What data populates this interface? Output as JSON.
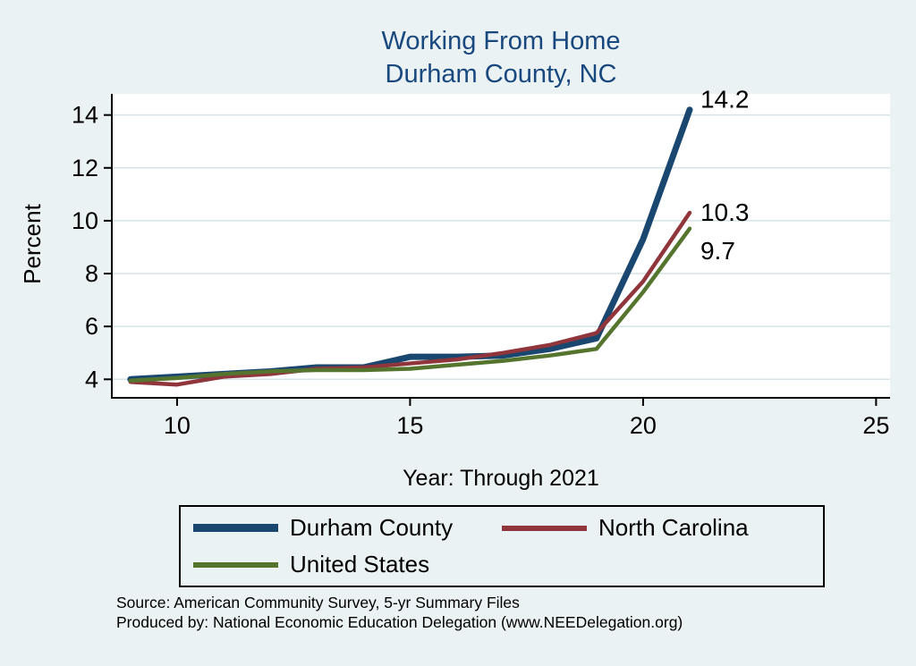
{
  "page": {
    "background": "#eaf2f3",
    "title_line1": "Working From Home",
    "title_line2": "Durham County, NC",
    "title_color": "#19487f"
  },
  "axis": {
    "x_label": "Year: Through 2021",
    "y_label": "Percent"
  },
  "chart_data": {
    "type": "line",
    "title": "Working From Home — Durham County, NC",
    "xlabel": "Year: Through 2021",
    "ylabel": "Percent",
    "x": [
      9,
      10,
      11,
      12,
      13,
      14,
      15,
      16,
      17,
      18,
      19,
      20,
      21
    ],
    "x_ticks": [
      10,
      15,
      20,
      25
    ],
    "y_ticks": [
      4,
      6,
      8,
      10,
      12,
      14
    ],
    "xlim": [
      8.6,
      25.3
    ],
    "ylim": [
      3.3,
      14.8
    ],
    "grid": true,
    "grid_color": "#d6e4e7",
    "plot_background": "#ffffff",
    "legend_position": "bottom",
    "series": [
      {
        "name": "Durham County",
        "color": "#1a476f",
        "width": 7,
        "end_label": "14.2",
        "label_dy": -2,
        "values": [
          4.0,
          4.1,
          4.2,
          4.3,
          4.45,
          4.45,
          4.85,
          4.85,
          4.9,
          5.15,
          5.55,
          9.3,
          14.2
        ]
      },
      {
        "name": "North Carolina",
        "color": "#90353b",
        "width": 4.5,
        "end_label": "10.3",
        "label_dy": 9,
        "values": [
          3.9,
          3.8,
          4.1,
          4.2,
          4.4,
          4.45,
          4.6,
          4.75,
          5.0,
          5.3,
          5.75,
          7.7,
          10.3
        ]
      },
      {
        "name": "United States",
        "color": "#55752f",
        "width": 4.5,
        "end_label": "9.7",
        "label_dy": 34,
        "values": [
          3.95,
          4.05,
          4.2,
          4.3,
          4.35,
          4.35,
          4.4,
          4.55,
          4.7,
          4.9,
          5.15,
          7.3,
          9.7
        ]
      }
    ]
  },
  "legend": {
    "items": [
      {
        "label": "Durham County"
      },
      {
        "label": "North Carolina"
      },
      {
        "label": "United States"
      }
    ]
  },
  "footer": {
    "source": "Source: American Community Survey, 5-yr Summary Files",
    "produced_by": "Produced by: National Economic Education Delegation (www.NEEDelegation.org)"
  }
}
